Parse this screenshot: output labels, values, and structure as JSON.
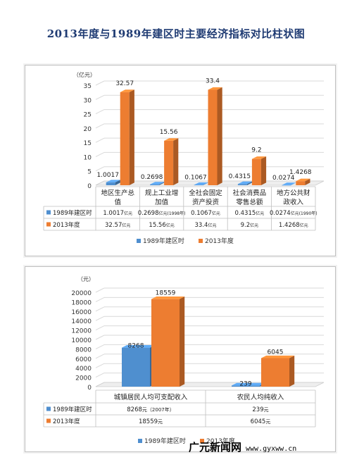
{
  "title": "2013年度与1989年建区时主要经济指标对比柱状图",
  "watermark": {
    "name": "广元新闻网",
    "url": "www.gyxww.cn"
  },
  "colors": {
    "series_1989": "#4f8fcf",
    "series_2013": "#ed7d31"
  },
  "chart_data": [
    {
      "type": "bar",
      "ylabel": "（亿元）",
      "ylim": [
        0,
        35
      ],
      "yticks": [
        0,
        5,
        10,
        15,
        20,
        25,
        30,
        35
      ],
      "categories": [
        [
          "地区生产总",
          "值"
        ],
        [
          "规上工业增",
          "加值"
        ],
        [
          "全社会固定",
          "资产投资"
        ],
        [
          "社会消费品",
          "零售总额"
        ],
        [
          "地方公共财",
          "政收入"
        ]
      ],
      "series": [
        {
          "name": "1989年建区时",
          "values": [
            1.0017,
            0.2698,
            0.1067,
            0.4315,
            0.0274
          ],
          "data_labels": [
            "1.0017",
            "0.2698",
            "0.1067",
            "0.4315",
            "0.0274"
          ],
          "table_cells": [
            {
              "value": "1.0017",
              "unit": "亿元"
            },
            {
              "value": "0.2698",
              "unit": "亿元(1998年)"
            },
            {
              "value": "0.1067",
              "unit": "亿元"
            },
            {
              "value": "0.4315",
              "unit": "亿元"
            },
            {
              "value": "0.0274",
              "unit": "亿元(1990年)"
            }
          ]
        },
        {
          "name": "2013年度",
          "values": [
            32.57,
            15.56,
            33.4,
            9.2,
            1.4268
          ],
          "data_labels": [
            "32.57",
            "15.56",
            "33.4",
            "9.2",
            "1.4268"
          ],
          "table_cells": [
            {
              "value": "32.57",
              "unit": "亿元"
            },
            {
              "value": "15.56",
              "unit": "亿元"
            },
            {
              "value": "33.4",
              "unit": "亿元"
            },
            {
              "value": "9.2",
              "unit": "亿元"
            },
            {
              "value": "1.4268",
              "unit": "亿元"
            }
          ]
        }
      ],
      "legend": "bottom"
    },
    {
      "type": "bar",
      "ylabel": "（元）",
      "ylim": [
        0,
        20000
      ],
      "yticks": [
        0,
        2000,
        4000,
        6000,
        8000,
        10000,
        12000,
        14000,
        16000,
        18000,
        20000
      ],
      "categories": [
        [
          "城镇居民人均可支配收入"
        ],
        [
          "农民人均纯收入"
        ]
      ],
      "series": [
        {
          "name": "1989年建区时",
          "values": [
            8268,
            239
          ],
          "data_labels": [
            "8268",
            "239"
          ],
          "table_cells": [
            {
              "value": "8268",
              "unit": "元（2007年）"
            },
            {
              "value": "239",
              "unit": "元"
            }
          ]
        },
        {
          "name": "2013年度",
          "values": [
            18559,
            6045
          ],
          "data_labels": [
            "18559",
            "6045"
          ],
          "table_cells": [
            {
              "value": "18559",
              "unit": "元"
            },
            {
              "value": "6045",
              "unit": "元"
            }
          ]
        }
      ],
      "legend": "bottom"
    }
  ]
}
